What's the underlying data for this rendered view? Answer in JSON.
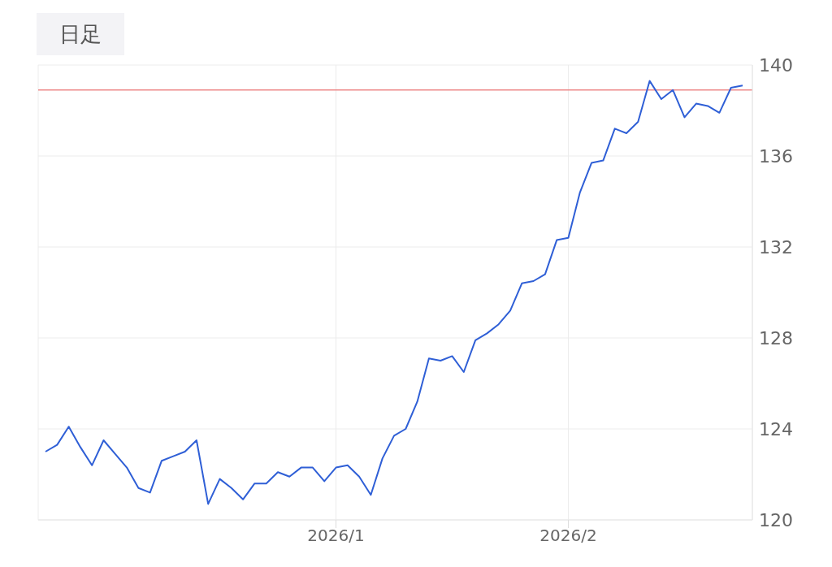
{
  "chart_data": {
    "type": "line",
    "title": "日足",
    "categories": [
      null,
      null,
      null,
      null,
      null,
      null,
      null,
      null,
      null,
      null,
      null,
      null,
      null,
      null,
      null,
      null,
      null,
      null,
      null,
      null,
      null,
      null,
      null,
      null,
      null,
      "2026/1",
      null,
      null,
      null,
      null,
      null,
      null,
      null,
      null,
      null,
      null,
      null,
      null,
      null,
      null,
      null,
      null,
      null,
      null,
      null,
      "2026/2",
      null,
      null,
      null,
      null,
      null,
      null,
      null,
      null,
      null,
      null,
      null,
      null,
      null,
      null,
      null
    ],
    "series": [
      {
        "color": "#2f5fd6",
        "values": [
          123.0,
          123.3,
          124.1,
          123.2,
          122.4,
          123.5,
          122.9,
          122.3,
          121.4,
          121.2,
          122.6,
          122.8,
          123.0,
          123.5,
          120.7,
          121.8,
          121.4,
          120.9,
          121.6,
          121.6,
          122.1,
          121.9,
          122.3,
          122.3,
          121.7,
          122.3,
          122.4,
          121.9,
          121.1,
          122.7,
          123.7,
          124.0,
          125.2,
          127.1,
          127.0,
          127.2,
          126.5,
          127.9,
          128.2,
          128.6,
          129.2,
          130.4,
          130.5,
          130.8,
          132.3,
          132.4,
          134.4,
          135.7,
          135.8,
          137.2,
          137.0,
          137.5,
          139.3,
          138.5,
          138.9,
          137.7,
          138.3,
          138.2,
          137.9,
          139.0,
          139.1
        ]
      }
    ],
    "ylim": [
      120,
      140
    ],
    "yticks": [
      120,
      124,
      128,
      132,
      136,
      140
    ],
    "grid": true,
    "marker": "none",
    "line_style": "solid",
    "ref_lines": [
      {
        "axis": "y",
        "value": 138.9,
        "color": "#ee8a8a"
      }
    ]
  }
}
